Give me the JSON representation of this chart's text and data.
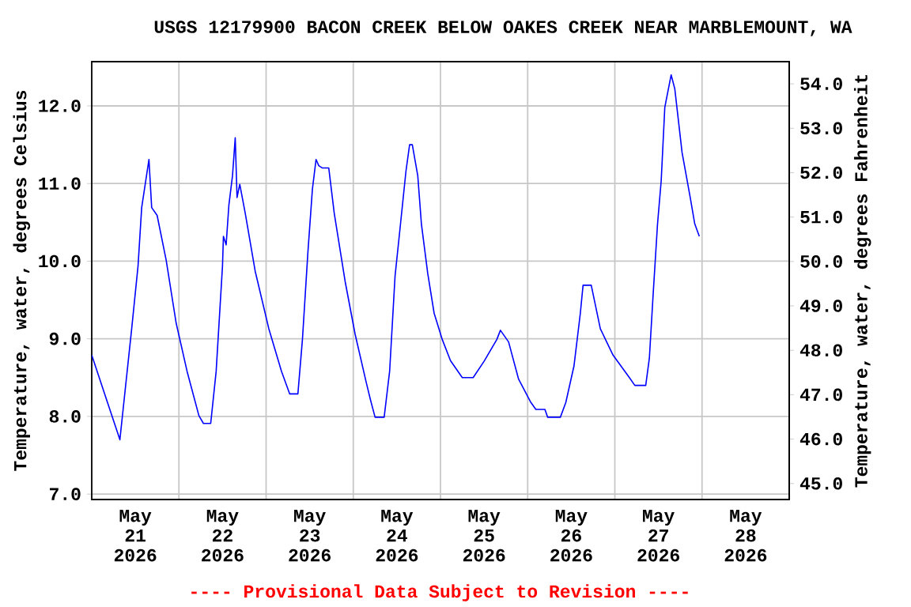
{
  "chart_data": {
    "type": "line",
    "title": "USGS 12179900 BACON CREEK BELOW OAKES CREEK NEAR MARBLEMOUNT, WA",
    "ylabel": "Temperature, water, degrees Celsius",
    "y2label": "Temperature, water, degrees Fahrenheit",
    "annotations": [
      "---- Provisional Data Subject to Revision ----"
    ],
    "color": "#0000ff",
    "x": [
      "2026-05-21T00:00",
      "2026-05-21T07:45",
      "2026-05-21T11:00",
      "2026-05-21T12:45",
      "2026-05-21T13:45",
      "2026-05-21T15:45",
      "2026-05-21T16:30",
      "2026-05-21T18:00",
      "2026-05-21T20:30",
      "2026-05-21T23:15",
      "2026-05-22T02:15",
      "2026-05-22T05:30",
      "2026-05-22T06:45",
      "2026-05-22T08:45",
      "2026-05-22T10:15",
      "2026-05-22T12:00",
      "2026-05-22T12:15",
      "2026-05-22T13:00",
      "2026-05-22T13:45",
      "2026-05-22T14:45",
      "2026-05-22T15:30",
      "2026-05-22T16:00",
      "2026-05-22T16:45",
      "2026-05-22T18:15",
      "2026-05-22T21:00",
      "2026-05-23T00:45",
      "2026-05-23T04:15",
      "2026-05-23T06:30",
      "2026-05-23T08:45",
      "2026-05-23T10:00",
      "2026-05-23T11:30",
      "2026-05-23T12:45",
      "2026-05-23T13:45",
      "2026-05-23T14:30",
      "2026-05-23T15:30",
      "2026-05-23T17:15",
      "2026-05-23T18:45",
      "2026-05-23T21:45",
      "2026-05-24T00:30",
      "2026-05-24T03:30",
      "2026-05-24T04:45",
      "2026-05-24T06:00",
      "2026-05-24T08:30",
      "2026-05-24T10:00",
      "2026-05-24T11:30",
      "2026-05-24T13:00",
      "2026-05-24T14:30",
      "2026-05-24T15:30",
      "2026-05-24T16:15",
      "2026-05-24T17:45",
      "2026-05-24T18:45",
      "2026-05-24T20:30",
      "2026-05-24T22:15",
      "2026-05-25T00:30",
      "2026-05-25T02:45",
      "2026-05-25T06:00",
      "2026-05-25T09:00",
      "2026-05-25T12:00",
      "2026-05-25T15:30",
      "2026-05-25T16:30",
      "2026-05-25T18:45",
      "2026-05-25T21:30",
      "2026-05-26T00:45",
      "2026-05-26T02:15",
      "2026-05-26T04:45",
      "2026-05-26T05:30",
      "2026-05-26T09:00",
      "2026-05-26T10:30",
      "2026-05-26T12:45",
      "2026-05-26T14:30",
      "2026-05-26T15:15",
      "2026-05-26T17:30",
      "2026-05-26T20:00",
      "2026-05-26T23:30",
      "2026-05-27T04:00",
      "2026-05-27T05:30",
      "2026-05-27T08:30",
      "2026-05-27T09:30",
      "2026-05-27T10:30",
      "2026-05-27T11:45",
      "2026-05-27T12:45",
      "2026-05-27T13:45",
      "2026-05-27T15:30",
      "2026-05-27T16:30",
      "2026-05-27T18:30",
      "2026-05-27T20:45",
      "2026-05-27T22:00",
      "2026-05-27T23:15"
    ],
    "values": [
      8.79,
      7.7,
      9.13,
      9.94,
      10.69,
      11.31,
      10.69,
      10.59,
      10.01,
      9.2,
      8.58,
      8.01,
      7.91,
      7.91,
      8.58,
      9.94,
      10.32,
      10.21,
      10.72,
      11.1,
      11.59,
      10.82,
      10.99,
      10.62,
      9.87,
      9.13,
      8.58,
      8.29,
      8.29,
      8.99,
      10.11,
      10.93,
      11.31,
      11.23,
      11.2,
      11.2,
      10.62,
      9.74,
      9.06,
      8.45,
      8.21,
      7.99,
      7.99,
      8.58,
      9.81,
      10.48,
      11.16,
      11.5,
      11.5,
      11.1,
      10.48,
      9.84,
      9.33,
      8.99,
      8.72,
      8.5,
      8.5,
      8.71,
      8.99,
      9.11,
      8.96,
      8.48,
      8.19,
      8.09,
      8.09,
      7.99,
      7.99,
      8.18,
      8.65,
      9.33,
      9.69,
      9.69,
      9.13,
      8.79,
      8.5,
      8.4,
      8.4,
      8.75,
      9.54,
      10.48,
      11.03,
      11.98,
      12.4,
      12.22,
      11.4,
      10.82,
      10.48,
      10.32
    ],
    "xlim": [
      "2026-05-21T00:00",
      "2026-05-29T00:00"
    ],
    "xticks": [
      {
        "value": "2026-05-21T12:00",
        "label": "May 21 2026"
      },
      {
        "value": "2026-05-22T12:00",
        "label": "May 22 2026"
      },
      {
        "value": "2026-05-23T12:00",
        "label": "May 23 2026"
      },
      {
        "value": "2026-05-24T12:00",
        "label": "May 24 2026"
      },
      {
        "value": "2026-05-25T12:00",
        "label": "May 25 2026"
      },
      {
        "value": "2026-05-26T12:00",
        "label": "May 26 2026"
      },
      {
        "value": "2026-05-27T12:00",
        "label": "May 27 2026"
      },
      {
        "value": "2026-05-28T12:00",
        "label": "May 28 2026"
      },
      {
        "value": "2026-05-22T00:00",
        "label": null
      },
      {
        "value": "2026-05-23T00:00",
        "label": null
      },
      {
        "value": "2026-05-24T00:00",
        "label": null
      },
      {
        "value": "2026-05-25T00:00",
        "label": null
      },
      {
        "value": "2026-05-26T00:00",
        "label": null
      },
      {
        "value": "2026-05-27T00:00",
        "label": null
      },
      {
        "value": "2026-05-28T00:00",
        "label": null
      }
    ],
    "ylim": [
      6.93,
      12.57
    ],
    "yticks": [
      {
        "value": 7,
        "label": "7.0"
      },
      {
        "value": 8,
        "label": "8.0"
      },
      {
        "value": 9,
        "label": "9.0"
      },
      {
        "value": 10,
        "label": "10.0"
      },
      {
        "value": 11,
        "label": "11.0"
      },
      {
        "value": 12,
        "label": "12.0"
      }
    ],
    "y2lim": [
      44.64,
      54.5
    ],
    "y2ticks": [
      {
        "value": 45,
        "label": "45.0"
      },
      {
        "value": 46,
        "label": "46.0"
      },
      {
        "value": 47,
        "label": "47.0"
      },
      {
        "value": 48,
        "label": "48.0"
      },
      {
        "value": 49,
        "label": "49.0"
      },
      {
        "value": 50,
        "label": "50.0"
      },
      {
        "value": 51,
        "label": "51.0"
      },
      {
        "value": 52,
        "label": "52.0"
      },
      {
        "value": 53,
        "label": "53.0"
      },
      {
        "value": 54,
        "label": "54.0"
      }
    ],
    "grid": true
  }
}
